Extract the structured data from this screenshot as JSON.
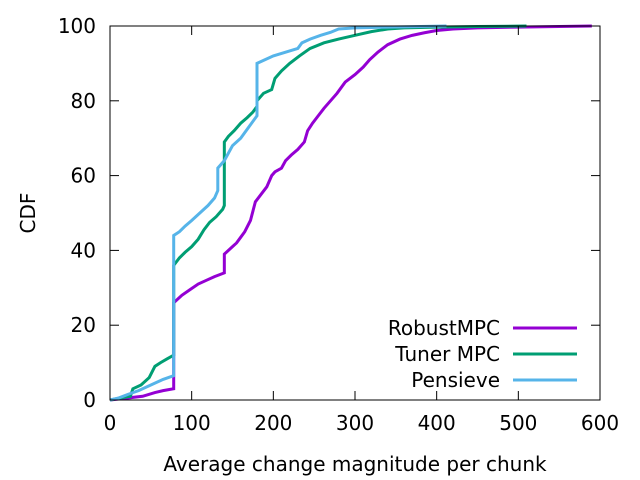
{
  "chart_data": {
    "type": "line",
    "title": "",
    "xlabel": "Average change magnitude per chunk",
    "ylabel": "CDF",
    "xlim": [
      0,
      600
    ],
    "ylim": [
      0,
      100
    ],
    "xticks": [
      0,
      100,
      200,
      300,
      400,
      500,
      600
    ],
    "yticks": [
      0,
      20,
      40,
      60,
      80,
      100
    ],
    "grid": false,
    "legend_position": "bottom-right",
    "series": [
      {
        "name": "RobustMPC",
        "color": "#9400d3",
        "points": [
          [
            0,
            0
          ],
          [
            20,
            0.5
          ],
          [
            40,
            1
          ],
          [
            55,
            2
          ],
          [
            65,
            2.5
          ],
          [
            78,
            3
          ],
          [
            78,
            26
          ],
          [
            88,
            28
          ],
          [
            98,
            29.5
          ],
          [
            108,
            31
          ],
          [
            118,
            32
          ],
          [
            128,
            33
          ],
          [
            140,
            34
          ],
          [
            140,
            39
          ],
          [
            150,
            41
          ],
          [
            155,
            42
          ],
          [
            160,
            43.5
          ],
          [
            165,
            45
          ],
          [
            172,
            48
          ],
          [
            178,
            53
          ],
          [
            185,
            55
          ],
          [
            192,
            57
          ],
          [
            198,
            60
          ],
          [
            202,
            61
          ],
          [
            210,
            62
          ],
          [
            215,
            64
          ],
          [
            222,
            65.5
          ],
          [
            230,
            67
          ],
          [
            238,
            69
          ],
          [
            242,
            72
          ],
          [
            248,
            74
          ],
          [
            255,
            76
          ],
          [
            262,
            78
          ],
          [
            270,
            80
          ],
          [
            278,
            82
          ],
          [
            288,
            85
          ],
          [
            300,
            87
          ],
          [
            310,
            89
          ],
          [
            318,
            91
          ],
          [
            328,
            93
          ],
          [
            340,
            95
          ],
          [
            355,
            96.5
          ],
          [
            370,
            97.5
          ],
          [
            385,
            98.2
          ],
          [
            400,
            98.8
          ],
          [
            420,
            99.2
          ],
          [
            450,
            99.5
          ],
          [
            500,
            99.7
          ],
          [
            550,
            99.85
          ],
          [
            590,
            100
          ]
        ]
      },
      {
        "name": "Tuner MPC",
        "color": "#009e73",
        "points": [
          [
            0,
            0
          ],
          [
            12,
            0.5
          ],
          [
            25,
            1
          ],
          [
            28,
            3
          ],
          [
            38,
            4
          ],
          [
            48,
            6
          ],
          [
            55,
            9
          ],
          [
            62,
            10
          ],
          [
            70,
            11
          ],
          [
            78,
            12
          ],
          [
            78,
            36
          ],
          [
            85,
            38
          ],
          [
            92,
            39.5
          ],
          [
            100,
            41
          ],
          [
            108,
            43
          ],
          [
            115,
            45.5
          ],
          [
            122,
            47.5
          ],
          [
            130,
            49
          ],
          [
            138,
            51
          ],
          [
            140,
            52
          ],
          [
            140,
            69
          ],
          [
            145,
            70.5
          ],
          [
            152,
            72
          ],
          [
            160,
            74
          ],
          [
            168,
            75.5
          ],
          [
            175,
            77
          ],
          [
            180,
            78.5
          ],
          [
            180,
            80
          ],
          [
            188,
            82
          ],
          [
            198,
            83
          ],
          [
            202,
            86
          ],
          [
            210,
            88
          ],
          [
            220,
            90
          ],
          [
            232,
            92
          ],
          [
            245,
            94
          ],
          [
            262,
            95.5
          ],
          [
            280,
            96.5
          ],
          [
            300,
            97.5
          ],
          [
            320,
            98.5
          ],
          [
            340,
            99.2
          ],
          [
            360,
            99.5
          ],
          [
            400,
            99.7
          ],
          [
            450,
            99.85
          ],
          [
            510,
            100
          ]
        ]
      },
      {
        "name": "Pensieve",
        "color": "#56b4e9",
        "points": [
          [
            0,
            0
          ],
          [
            10,
            0.5
          ],
          [
            22,
            1.5
          ],
          [
            35,
            2.5
          ],
          [
            45,
            3.5
          ],
          [
            55,
            4.5
          ],
          [
            65,
            5.5
          ],
          [
            78,
            6.5
          ],
          [
            78,
            44
          ],
          [
            85,
            45
          ],
          [
            92,
            46.5
          ],
          [
            100,
            48
          ],
          [
            110,
            50
          ],
          [
            120,
            52
          ],
          [
            128,
            54
          ],
          [
            132,
            56
          ],
          [
            132,
            62
          ],
          [
            140,
            64
          ],
          [
            150,
            68
          ],
          [
            160,
            70
          ],
          [
            170,
            73
          ],
          [
            180,
            76
          ],
          [
            180,
            90
          ],
          [
            190,
            91
          ],
          [
            200,
            92
          ],
          [
            215,
            93
          ],
          [
            230,
            94
          ],
          [
            235,
            95.5
          ],
          [
            245,
            96.5
          ],
          [
            258,
            97.5
          ],
          [
            270,
            98.3
          ],
          [
            280,
            99.2
          ],
          [
            300,
            99.5
          ],
          [
            340,
            99.7
          ],
          [
            380,
            99.85
          ],
          [
            412,
            100
          ]
        ]
      }
    ]
  }
}
